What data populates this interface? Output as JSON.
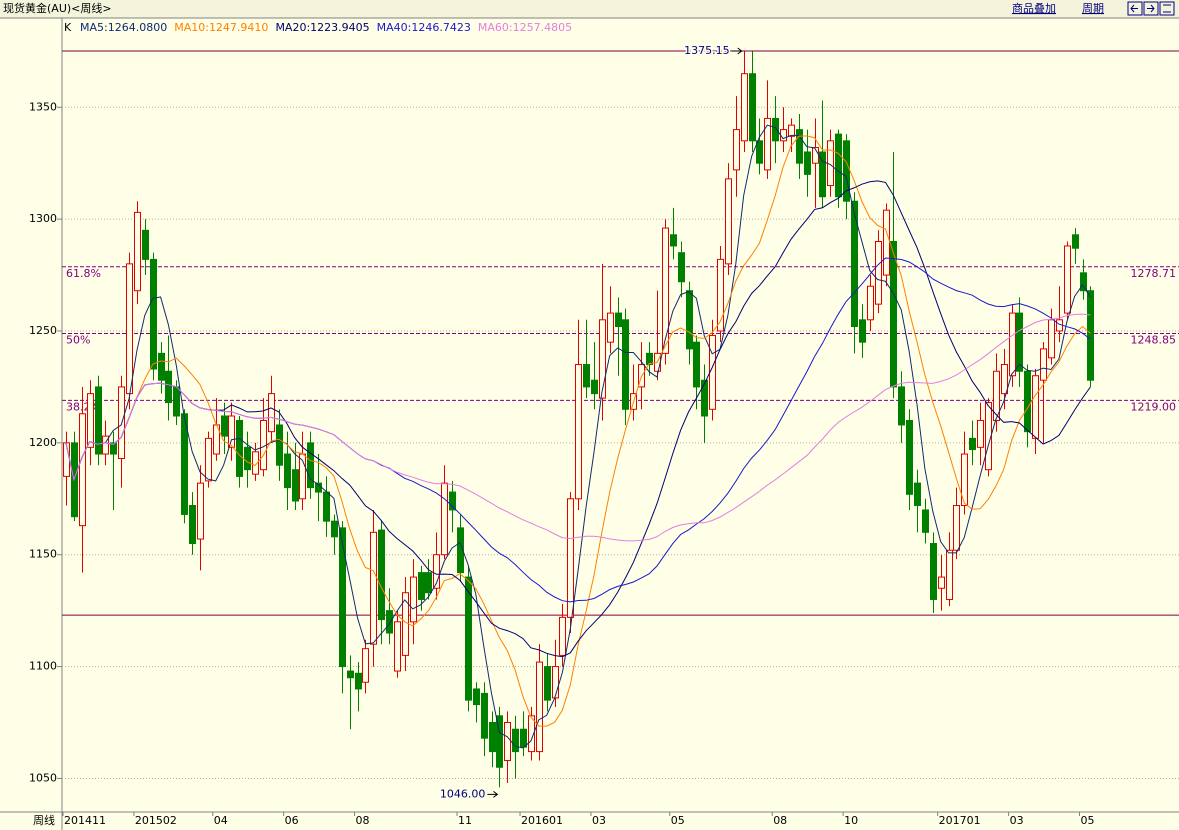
{
  "chart_data": {
    "type": "candlestick",
    "title": "现货黄金(AU)<周线>",
    "buttons": [
      "商品叠加",
      "周期"
    ],
    "x_axis_label": "周线",
    "legend_prefix": "K",
    "indicators": [
      {
        "label": "MA5:1264.0800",
        "color": "#102a70"
      },
      {
        "label": "MA10:1247.9410",
        "color": "#ff8000"
      },
      {
        "label": "MA20:1223.9405",
        "color": "#000070"
      },
      {
        "label": "MA40:1246.7423",
        "color": "#1818d0"
      },
      {
        "label": "MA60:1257.4805",
        "color": "#e27ee2"
      }
    ],
    "categories": [
      "201411",
      null,
      null,
      null,
      null,
      null,
      null,
      null,
      null,
      "201502",
      null,
      null,
      null,
      null,
      null,
      null,
      null,
      null,
      null,
      "04",
      null,
      null,
      null,
      null,
      null,
      null,
      null,
      null,
      "06",
      null,
      null,
      null,
      null,
      null,
      null,
      null,
      null,
      "08",
      null,
      null,
      null,
      null,
      null,
      null,
      null,
      null,
      null,
      null,
      null,
      null,
      "11",
      null,
      null,
      null,
      null,
      null,
      null,
      null,
      "201601",
      null,
      null,
      null,
      null,
      null,
      null,
      null,
      null,
      "03",
      null,
      null,
      null,
      null,
      null,
      null,
      null,
      null,
      null,
      "05",
      null,
      null,
      null,
      null,
      null,
      null,
      null,
      null,
      null,
      null,
      null,
      null,
      "08",
      null,
      null,
      null,
      null,
      null,
      null,
      null,
      null,
      "10",
      null,
      null,
      null,
      null,
      null,
      null,
      null,
      null,
      null,
      null,
      null,
      "201701",
      null,
      null,
      null,
      null,
      null,
      null,
      null,
      null,
      "03",
      null,
      null,
      null,
      null,
      null,
      null,
      null,
      null,
      "05",
      null
    ],
    "open": [
      1185,
      1200,
      1163,
      1198,
      1225,
      1195,
      1200,
      1193,
      1222,
      1268,
      1295,
      1282,
      1240,
      1232,
      1225,
      1213,
      1172,
      1157,
      1183,
      1195,
      1212,
      1198,
      1210,
      1198,
      1186,
      1188,
      1205,
      1208,
      1195,
      1188,
      1175,
      1200,
      1182,
      1178,
      1165,
      1162,
      1098,
      1097,
      1093,
      1110,
      1161,
      1125,
      1098,
      1105,
      1120,
      1142,
      1142,
      1135,
      1150,
      1178,
      1162,
      1140,
      1090,
      1088,
      1075,
      1078,
      1058,
      1072,
      1072,
      1062,
      1062,
      1100,
      1086,
      1105,
      1122,
      1175,
      1235,
      1228,
      1220,
      1245,
      1258,
      1255,
      1215,
      1225,
      1240,
      1232,
      1240,
      1293,
      1285,
      1268,
      1245,
      1228,
      1215,
      1250,
      1280,
      1322,
      1335,
      1365,
      1335,
      1322,
      1345,
      1335,
      1337,
      1340,
      1330,
      1325,
      1330,
      1315,
      1338,
      1335,
      1308,
      1255,
      1255,
      1262,
      1275,
      1290,
      1225,
      1210,
      1182,
      1170,
      1155,
      1135,
      1130,
      1152,
      1172,
      1202,
      1198,
      1188,
      1210,
      1222,
      1230,
      1258,
      1232,
      1202,
      1228,
      1238,
      1250,
      1258,
      1293,
      1276,
      1268
    ],
    "high": [
      1205,
      1205,
      1225,
      1228,
      1230,
      1210,
      1205,
      1230,
      1285,
      1308,
      1300,
      1285,
      1245,
      1248,
      1228,
      1215,
      1178,
      1190,
      1205,
      1220,
      1218,
      1218,
      1212,
      1205,
      1200,
      1220,
      1230,
      1215,
      1205,
      1200,
      1205,
      1205,
      1195,
      1185,
      1168,
      1165,
      1105,
      1102,
      1112,
      1170,
      1165,
      1135,
      1125,
      1140,
      1148,
      1145,
      1148,
      1160,
      1190,
      1183,
      1168,
      1145,
      1093,
      1093,
      1080,
      1082,
      1080,
      1078,
      1080,
      1082,
      1110,
      1106,
      1112,
      1128,
      1178,
      1255,
      1255,
      1245,
      1280,
      1270,
      1265,
      1260,
      1235,
      1245,
      1245,
      1268,
      1300,
      1305,
      1290,
      1272,
      1248,
      1235,
      1255,
      1288,
      1325,
      1355,
      1375,
      1375,
      1345,
      1362,
      1355,
      1350,
      1345,
      1347,
      1340,
      1345,
      1353,
      1340,
      1340,
      1338,
      1312,
      1262,
      1275,
      1295,
      1307,
      1330,
      1232,
      1215,
      1188,
      1175,
      1160,
      1150,
      1160,
      1180,
      1205,
      1210,
      1218,
      1220,
      1240,
      1242,
      1262,
      1265,
      1235,
      1233,
      1245,
      1260,
      1270,
      1290,
      1296,
      1282,
      1270
    ],
    "low": [
      1172,
      1165,
      1142,
      1190,
      1190,
      1190,
      1170,
      1180,
      1215,
      1262,
      1275,
      1228,
      1222,
      1210,
      1208,
      1164,
      1150,
      1143,
      1180,
      1192,
      1195,
      1192,
      1180,
      1180,
      1183,
      1185,
      1200,
      1183,
      1170,
      1170,
      1170,
      1175,
      1165,
      1158,
      1150,
      1088,
      1072,
      1080,
      1088,
      1100,
      1110,
      1110,
      1095,
      1098,
      1110,
      1125,
      1130,
      1130,
      1148,
      1160,
      1138,
      1080,
      1075,
      1060,
      1055,
      1046,
      1048,
      1050,
      1060,
      1058,
      1058,
      1080,
      1082,
      1100,
      1115,
      1170,
      1220,
      1215,
      1210,
      1240,
      1230,
      1208,
      1210,
      1215,
      1230,
      1228,
      1235,
      1282,
      1265,
      1235,
      1215,
      1200,
      1210,
      1245,
      1275,
      1310,
      1330,
      1330,
      1320,
      1318,
      1325,
      1330,
      1330,
      1318,
      1310,
      1305,
      1305,
      1310,
      1305,
      1300,
      1240,
      1238,
      1250,
      1258,
      1270,
      1220,
      1200,
      1170,
      1160,
      1155,
      1124,
      1125,
      1127,
      1148,
      1168,
      1190,
      1190,
      1185,
      1205,
      1215,
      1225,
      1225,
      1198,
      1195,
      1200,
      1235,
      1245,
      1255,
      1280,
      1264,
      1225
    ],
    "close": [
      1200,
      1167,
      1213,
      1222,
      1195,
      1203,
      1195,
      1225,
      1280,
      1303,
      1282,
      1233,
      1228,
      1218,
      1212,
      1168,
      1155,
      1182,
      1202,
      1208,
      1203,
      1212,
      1185,
      1188,
      1196,
      1210,
      1222,
      1190,
      1180,
      1174,
      1195,
      1180,
      1178,
      1165,
      1158,
      1100,
      1095,
      1090,
      1108,
      1160,
      1121,
      1115,
      1120,
      1133,
      1140,
      1130,
      1133,
      1150,
      1182,
      1170,
      1142,
      1085,
      1083,
      1068,
      1062,
      1055,
      1075,
      1062,
      1064,
      1078,
      1102,
      1085,
      1100,
      1122,
      1175,
      1235,
      1225,
      1222,
      1255,
      1258,
      1252,
      1215,
      1222,
      1235,
      1235,
      1240,
      1296,
      1288,
      1272,
      1242,
      1225,
      1212,
      1248,
      1282,
      1318,
      1340,
      1365,
      1335,
      1325,
      1345,
      1335,
      1340,
      1342,
      1325,
      1320,
      1332,
      1310,
      1335,
      1310,
      1308,
      1252,
      1245,
      1270,
      1290,
      1304,
      1225,
      1208,
      1177,
      1172,
      1160,
      1130,
      1140,
      1152,
      1172,
      1195,
      1197,
      1210,
      1218,
      1232,
      1235,
      1258,
      1232,
      1205,
      1230,
      1242,
      1255,
      1255,
      1288,
      1287,
      1268,
      1228
    ],
    "up_color": "#e00000",
    "down_color": "#008000",
    "ylim": [
      1035,
      1389
    ],
    "yticks": [
      1050,
      1100,
      1150,
      1200,
      1250,
      1300,
      1350
    ],
    "grid": true,
    "levels": [
      {
        "name": "61.8%",
        "price": 1278.71
      },
      {
        "name": "50%",
        "price": 1248.85
      },
      {
        "name": "38.2%",
        "price": {
          "value": 1219,
          "label": "1219.00"
        }
      }
    ],
    "high_mark": 1375.15,
    "low_mark": {
      "value": 1046,
      "label": "1046.00"
    },
    "support_line": 1123
  }
}
